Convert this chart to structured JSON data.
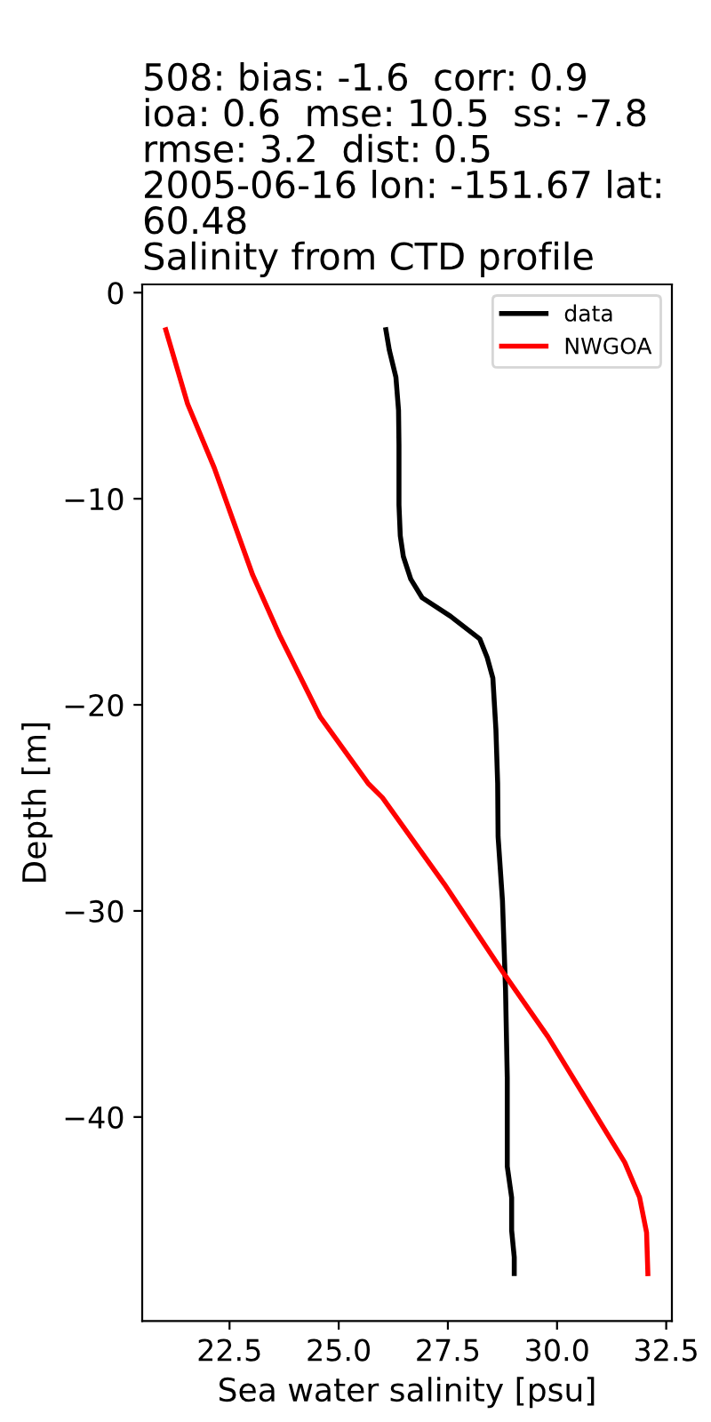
{
  "chart_data": {
    "type": "line",
    "title": "508: bias: -1.6  corr: 0.9\nioa: 0.6  mse: 10.5  ss: -7.8\nrmse: 3.2  dist: 0.5\n2005-06-16 lon: -151.67 lat:\n60.48\nSalinity from CTD profile",
    "xlabel": "Sea water salinity [psu]",
    "ylabel": "Depth [m]",
    "series": [
      {
        "name": "data",
        "color": "#000000",
        "x": [
          26.08,
          26.16,
          26.31,
          26.37,
          26.38,
          26.38,
          26.41,
          26.48,
          26.65,
          26.91,
          27.56,
          28.23,
          28.4,
          28.53,
          28.6,
          28.64,
          28.65,
          28.75,
          28.82,
          28.86,
          28.86,
          28.96,
          28.96,
          29.02,
          29.02
        ],
        "values": [
          -1.8,
          -2.8,
          -4.1,
          -5.7,
          -7.4,
          -10.3,
          -11.8,
          -12.8,
          -13.9,
          -14.8,
          -15.7,
          -16.8,
          -17.7,
          -18.7,
          -21.2,
          -23.8,
          -26.4,
          -29.5,
          -33.8,
          -38.1,
          -42.4,
          -43.9,
          -45.5,
          -46.8,
          -47.6
        ]
      },
      {
        "name": "NWGOA",
        "color": "#ff0000",
        "x": [
          21.04,
          21.54,
          22.15,
          23.03,
          23.64,
          24.58,
          25.67,
          26.0,
          27.42,
          28.77,
          29.79,
          30.8,
          31.55,
          31.89,
          32.05,
          32.08
        ],
        "values": [
          -1.8,
          -5.4,
          -8.5,
          -13.7,
          -16.6,
          -20.6,
          -23.8,
          -24.5,
          -28.7,
          -33.0,
          -36.1,
          -39.6,
          -42.2,
          -43.9,
          -45.6,
          -47.6
        ]
      }
    ],
    "xlim": [
      20.5,
      32.63
    ],
    "ylim": [
      -49.9,
      0.4
    ],
    "xticks": [
      {
        "value": 22.5,
        "label": "22.5"
      },
      {
        "value": 25,
        "label": "25.0"
      },
      {
        "value": 27.5,
        "label": "27.5"
      },
      {
        "value": 30,
        "label": "30.0"
      },
      {
        "value": 32.5,
        "label": "32.5"
      }
    ],
    "yticks": [
      {
        "value": -40,
        "label": "−40"
      },
      {
        "value": -30,
        "label": "−30"
      },
      {
        "value": -20,
        "label": "−20"
      },
      {
        "value": -10,
        "label": "−10"
      },
      0
    ],
    "legend": "top right",
    "line_style": "solid",
    "marker": "none"
  }
}
